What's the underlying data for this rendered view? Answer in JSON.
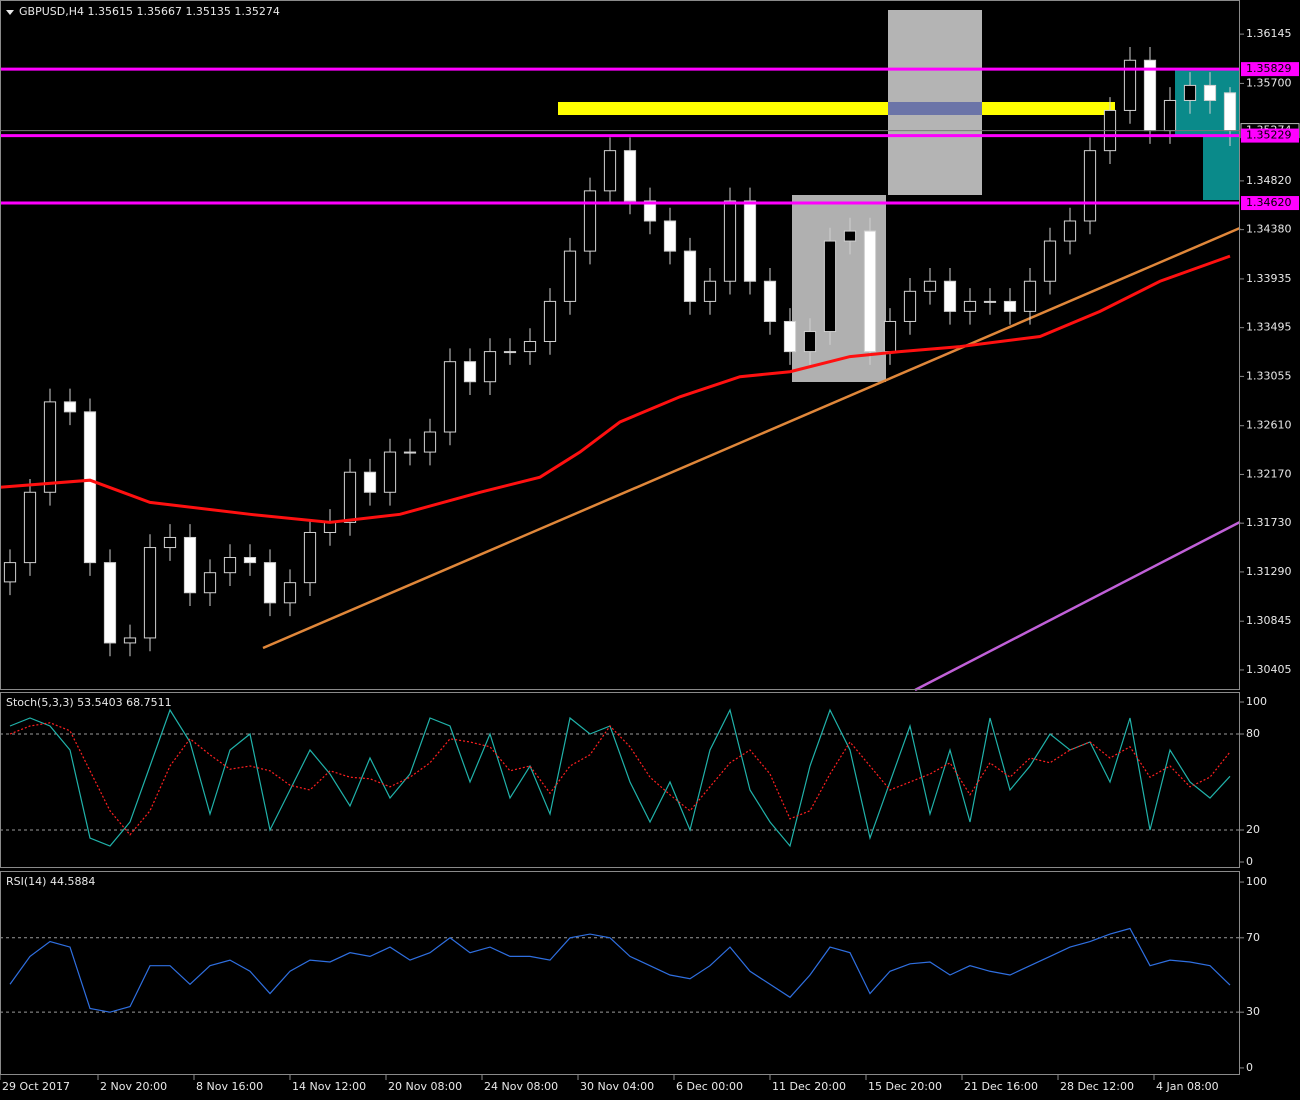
{
  "chart_data": [
    {
      "type": "candlestick",
      "title": "GBPUSD,H4  1.35615 1.35667 1.35135 1.35274",
      "open": [
        1.312,
        1.31374,
        1.32009,
        1.32825,
        1.32735,
        1.31374,
        1.30649,
        1.30694,
        1.3151,
        1.31601,
        1.31102,
        1.31283,
        1.3142,
        1.31374,
        1.31011,
        1.31193,
        1.31646,
        1.31737,
        1.3219,
        1.32009,
        1.32372,
        1.32372,
        1.32553,
        1.33188,
        1.33007,
        1.33279,
        1.33279,
        1.3337,
        1.33732,
        1.34186,
        1.3473,
        1.35093,
        1.34639,
        1.34458,
        1.34186,
        1.33732,
        1.33914,
        1.34639,
        1.33914,
        1.33551,
        1.33279,
        1.3346,
        1.34277,
        1.34367,
        1.33279,
        1.33551,
        1.33823,
        1.33914,
        1.33642,
        1.33732,
        1.33732,
        1.33642,
        1.33914,
        1.34277,
        1.34458,
        1.35093,
        1.35456,
        1.35909,
        1.35274,
        1.35546,
        1.35682,
        1.35615
      ],
      "high": [
        1.31494,
        1.32129,
        1.32945,
        1.32945,
        1.32855,
        1.31494,
        1.30814,
        1.3163,
        1.31721,
        1.31721,
        1.31403,
        1.3154,
        1.3154,
        1.31494,
        1.31313,
        1.31766,
        1.31857,
        1.3231,
        1.3231,
        1.32492,
        1.32492,
        1.32673,
        1.33308,
        1.33308,
        1.33399,
        1.33399,
        1.3349,
        1.33852,
        1.34306,
        1.3485,
        1.35213,
        1.35213,
        1.34759,
        1.34578,
        1.34306,
        1.34034,
        1.34759,
        1.34759,
        1.34034,
        1.33671,
        1.3358,
        1.34397,
        1.34487,
        1.34487,
        1.33671,
        1.33943,
        1.34034,
        1.34034,
        1.33852,
        1.33852,
        1.33852,
        1.34034,
        1.34397,
        1.34578,
        1.35213,
        1.35576,
        1.36029,
        1.36029,
        1.35666,
        1.35802,
        1.35802,
        1.35667
      ],
      "low": [
        1.3108,
        1.31254,
        1.31889,
        1.32615,
        1.31254,
        1.30529,
        1.30529,
        1.30574,
        1.3139,
        1.30982,
        1.30982,
        1.31163,
        1.31254,
        1.30891,
        1.30891,
        1.31073,
        1.31526,
        1.31617,
        1.31889,
        1.31889,
        1.32252,
        1.32252,
        1.32433,
        1.32887,
        1.32887,
        1.33159,
        1.33159,
        1.3325,
        1.33612,
        1.34066,
        1.3461,
        1.34519,
        1.34338,
        1.34066,
        1.33612,
        1.33612,
        1.33794,
        1.33794,
        1.33431,
        1.33159,
        1.33159,
        1.3334,
        1.34157,
        1.33159,
        1.33159,
        1.33431,
        1.33703,
        1.33522,
        1.33522,
        1.33612,
        1.33522,
        1.33522,
        1.33794,
        1.34157,
        1.34338,
        1.34973,
        1.35336,
        1.35154,
        1.35154,
        1.35426,
        1.35426,
        1.35135
      ],
      "close": [
        1.31374,
        1.32009,
        1.32825,
        1.32735,
        1.31374,
        1.30649,
        1.30694,
        1.3151,
        1.31601,
        1.31102,
        1.31283,
        1.3142,
        1.31374,
        1.31011,
        1.31193,
        1.31646,
        1.31737,
        1.3219,
        1.32009,
        1.32372,
        1.32372,
        1.32553,
        1.33188,
        1.33007,
        1.33279,
        1.33279,
        1.3337,
        1.33732,
        1.34186,
        1.3473,
        1.35093,
        1.34639,
        1.34458,
        1.34186,
        1.33732,
        1.33914,
        1.34639,
        1.33914,
        1.33551,
        1.33279,
        1.3346,
        1.34277,
        1.34367,
        1.33279,
        1.33551,
        1.33823,
        1.33914,
        1.33642,
        1.33732,
        1.33732,
        1.33642,
        1.33914,
        1.34277,
        1.34458,
        1.35093,
        1.35456,
        1.35909,
        1.35274,
        1.35546,
        1.35682,
        1.35546,
        1.35274
      ],
      "up_color": "#000000",
      "down_color": "#ffffff",
      "wick_color": "#d0d0d0",
      "ma": {
        "color": "#ff1010",
        "x": [
          0,
          4.5,
          7.5,
          12.5,
          16.5,
          20,
          24,
          27,
          29,
          31,
          34,
          37,
          39.5,
          42.5,
          45,
          48,
          52,
          55,
          58,
          61.5
        ],
        "values": [
          1.32054,
          1.32118,
          1.31918,
          1.3181,
          1.31737,
          1.3181,
          1.32009,
          1.32145,
          1.32372,
          1.32644,
          1.32871,
          1.33052,
          1.33097,
          1.33234,
          1.33279,
          1.33324,
          1.33415,
          1.33642,
          1.33914,
          1.34141
        ]
      },
      "levels": [
        1.35829,
        1.35229,
        {
          "value": 1.3462,
          "label": "1.34620"
        }
      ],
      "level_color": "#ff00ff",
      "last_price": 1.35274,
      "xlim": [
        0,
        62
      ],
      "ylim": [
        1.30224,
        1.36453
      ],
      "yticks": [
        1.36145,
        {
          "value": 1.357,
          "label": "1.35700"
        },
        {
          "value": 1.3482,
          "label": "1.34820"
        },
        {
          "value": 1.3438,
          "label": "1.34380"
        },
        1.33935,
        1.33495,
        1.33055,
        {
          "value": 1.3261,
          "label": "1.32610"
        },
        {
          "value": 1.3217,
          "label": "1.32170"
        },
        {
          "value": 1.3173,
          "label": "1.31730"
        },
        {
          "value": 1.3129,
          "label": "1.31290"
        },
        1.30845,
        1.30405
      ],
      "xticks": [
        {
          "value": 0,
          "label": "29 Oct 2017"
        },
        {
          "value": 4.9,
          "label": "2 Nov 20:00"
        },
        {
          "value": 9.7,
          "label": "8 Nov 16:00"
        },
        {
          "value": 14.5,
          "label": "14 Nov 12:00"
        },
        {
          "value": 19.3,
          "label": "20 Nov 08:00"
        },
        {
          "value": 24.1,
          "label": "24 Nov 08:00"
        },
        {
          "value": 28.9,
          "label": "30 Nov 04:00"
        },
        {
          "value": 33.7,
          "label": "6 Dec 00:00"
        },
        {
          "value": 38.5,
          "label": "11 Dec 20:00"
        },
        {
          "value": 43.3,
          "label": "15 Dec 20:00"
        },
        {
          "value": 48.1,
          "label": "21 Dec 16:00"
        },
        {
          "value": 52.9,
          "label": "28 Dec 12:00"
        },
        {
          "value": 57.7,
          "label": "4 Jan 08:00"
        }
      ]
    },
    {
      "type": "line",
      "title": "Stoch(5,3,3) 53.5403 68.7511",
      "series": [
        {
          "color": "#20b2aa",
          "dash": false,
          "values": [
            85,
            90,
            85,
            70,
            15,
            10,
            25,
            60,
            95,
            75,
            30,
            70,
            80,
            20,
            45,
            70,
            55,
            35,
            65,
            40,
            55,
            90,
            85,
            50,
            80,
            40,
            60,
            30,
            90,
            80,
            85,
            50,
            25,
            50,
            20,
            70,
            95,
            45,
            25,
            10,
            60,
            95,
            70,
            15,
            50,
            85,
            30,
            70,
            25,
            90,
            45,
            60,
            80,
            70,
            75,
            50,
            90,
            20,
            70,
            50,
            40,
            53.5403
          ]
        },
        {
          "color": "#ff2020",
          "dash": true,
          "values": [
            80,
            85,
            87,
            82,
            57,
            32,
            17,
            32,
            60,
            77,
            67,
            58,
            60,
            57,
            48,
            45,
            57,
            53,
            52,
            47,
            53,
            62,
            77,
            75,
            72,
            57,
            60,
            43,
            60,
            67,
            85,
            72,
            53,
            42,
            32,
            47,
            62,
            70,
            55,
            27,
            32,
            55,
            75,
            60,
            45,
            50,
            55,
            62,
            42,
            62,
            53,
            65,
            62,
            70,
            75,
            65,
            72,
            53,
            60,
            47,
            53,
            68.7511
          ]
        }
      ],
      "levels": [
        20,
        80
      ],
      "xlim": [
        0,
        62
      ],
      "ylim": [
        -3.75,
        106.25
      ],
      "yticks": [
        0,
        20,
        80,
        100
      ]
    },
    {
      "type": "line",
      "title": "RSI(14) 44.5884",
      "series": [
        {
          "color": "#2f6fe0",
          "dash": false,
          "values": [
            45,
            60,
            68,
            65,
            32,
            30,
            33,
            55,
            55,
            45,
            55,
            58,
            52,
            40,
            52,
            58,
            57,
            62,
            60,
            65,
            58,
            62,
            70,
            62,
            65,
            60,
            60,
            58,
            70,
            72,
            70,
            60,
            55,
            50,
            48,
            55,
            65,
            52,
            45,
            38,
            50,
            65,
            62,
            40,
            52,
            56,
            57,
            50,
            55,
            52,
            50,
            55,
            60,
            65,
            68,
            72,
            75,
            55,
            58,
            57,
            55,
            44.5884
          ]
        }
      ],
      "levels": [
        30,
        70
      ],
      "xlim": [
        0,
        62
      ],
      "ylim": [
        -3.8,
        105.4
      ],
      "yticks": [
        0,
        30,
        70,
        100
      ]
    }
  ]
}
